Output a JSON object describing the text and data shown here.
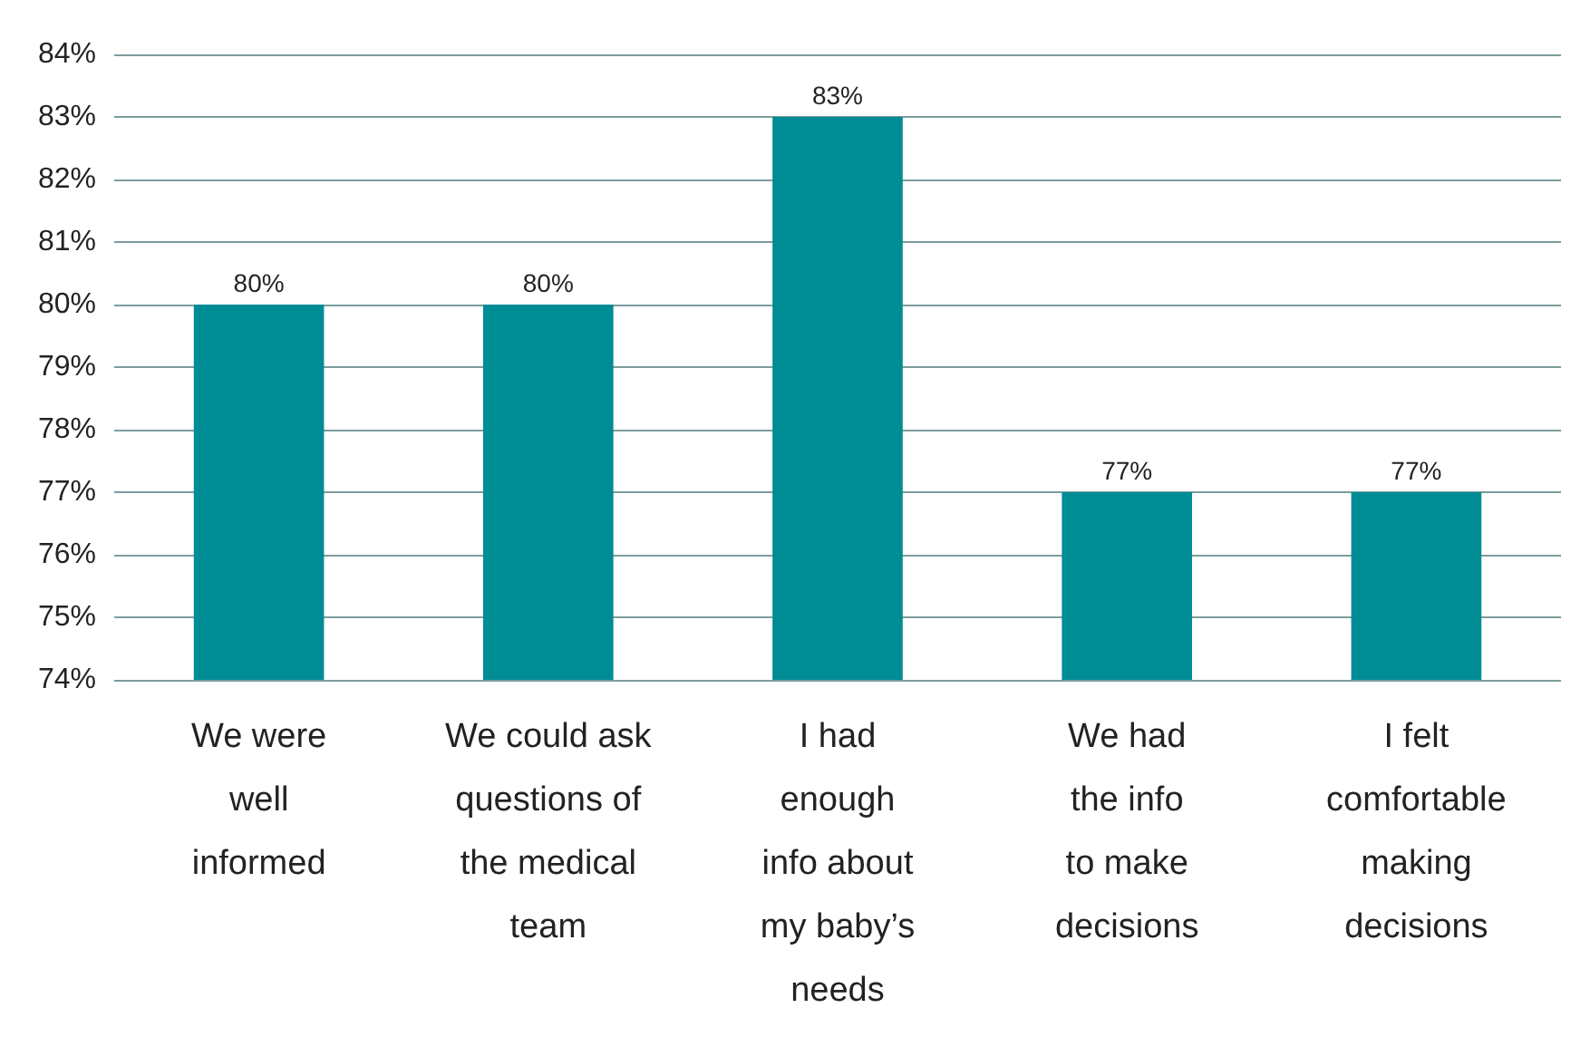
{
  "chart_data": {
    "type": "bar",
    "categories": [
      "We were\nwell\ninformed",
      "We could ask\nquestions of\nthe medical\nteam",
      "I had\nenough\ninfo about\nmy baby’s\nneeds",
      "We had\nthe info\nto make\ndecisions",
      "I felt\ncomfortable\nmaking\ndecisions"
    ],
    "values": [
      80,
      80,
      83,
      77,
      77
    ],
    "value_labels": [
      "80%",
      "80%",
      "83%",
      "77%",
      "77%"
    ],
    "color": "#008c95",
    "ylim": [
      74,
      84
    ],
    "yticks": [
      {
        "value": 74,
        "label": "74%"
      },
      {
        "value": 75,
        "label": "75%"
      },
      {
        "value": 76,
        "label": "76%"
      },
      {
        "value": 77,
        "label": "77%"
      },
      {
        "value": 78,
        "label": "78%"
      },
      {
        "value": 79,
        "label": "79%"
      },
      {
        "value": 80,
        "label": "80%"
      },
      {
        "value": 81,
        "label": "81%"
      },
      {
        "value": 82,
        "label": "82%"
      },
      {
        "value": 83,
        "label": "83%"
      },
      {
        "value": 84,
        "label": "84%"
      }
    ],
    "grid": true
  }
}
